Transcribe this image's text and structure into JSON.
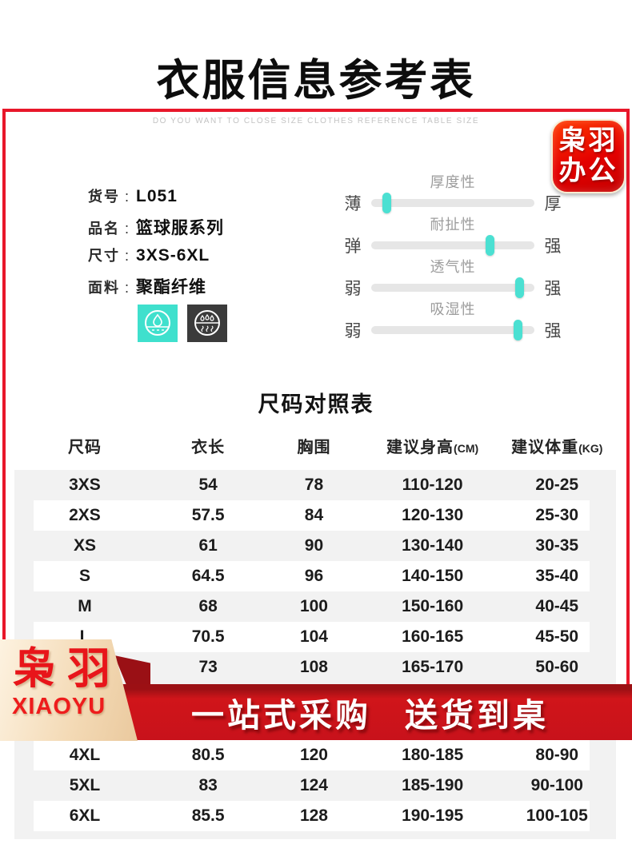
{
  "header": {
    "title": "衣服信息参考表",
    "subtitle": "DO YOU WANT TO CLOSE SIZE CLOTHES REFERENCE TABLE SIZE"
  },
  "brand_badge": {
    "line1": "枭羽",
    "line2": "办公"
  },
  "product_info": {
    "separator": ":",
    "items": [
      {
        "label": "货号",
        "value": "L051"
      },
      {
        "label": "品名",
        "value": "篮球服系列"
      },
      {
        "label": "尺寸",
        "value": "3XS-6XL"
      },
      {
        "label": "面料",
        "value": "聚酯纤维"
      }
    ]
  },
  "feature_icons": [
    {
      "name": "moisture-drop-icon",
      "bg": "#3fe0cd"
    },
    {
      "name": "sweat-wicking-icon",
      "bg": "#3b3b3b"
    }
  ],
  "sliders": [
    {
      "title": "厚度性",
      "left": "薄",
      "right": "厚",
      "percent": 10
    },
    {
      "title": "耐扯性",
      "left": "弹",
      "right": "强",
      "percent": 73
    },
    {
      "title": "透气性",
      "left": "弱",
      "right": "强",
      "percent": 91
    },
    {
      "title": "吸湿性",
      "left": "弱",
      "right": "强",
      "percent": 90
    }
  ],
  "size_table": {
    "title": "尺码对照表",
    "columns": [
      {
        "text": "尺码",
        "unit": ""
      },
      {
        "text": "衣长",
        "unit": ""
      },
      {
        "text": "胸围",
        "unit": ""
      },
      {
        "text": "建议身高",
        "unit": "(CM)"
      },
      {
        "text": "建议体重",
        "unit": "(KG)"
      }
    ],
    "rows": [
      {
        "size": "3XS",
        "length": "54",
        "chest": "78",
        "height": "110-120",
        "weight": "20-25",
        "striped": false
      },
      {
        "size": "2XS",
        "length": "57.5",
        "chest": "84",
        "height": "120-130",
        "weight": "25-30",
        "striped": true
      },
      {
        "size": "XS",
        "length": "61",
        "chest": "90",
        "height": "130-140",
        "weight": "30-35",
        "striped": false
      },
      {
        "size": "S",
        "length": "64.5",
        "chest": "96",
        "height": "140-150",
        "weight": "35-40",
        "striped": true
      },
      {
        "size": "M",
        "length": "68",
        "chest": "100",
        "height": "150-160",
        "weight": "40-45",
        "striped": false
      },
      {
        "size": "L",
        "length": "70.5",
        "chest": "104",
        "height": "160-165",
        "weight": "45-50",
        "striped": true
      },
      {
        "size": "",
        "length": "73",
        "chest": "108",
        "height": "165-170",
        "weight": "50-60",
        "striped": false
      },
      {
        "spacer": true
      },
      {
        "size": "4XL",
        "length": "80.5",
        "chest": "120",
        "height": "180-185",
        "weight": "80-90",
        "striped": true
      },
      {
        "size": "5XL",
        "length": "83",
        "chest": "124",
        "height": "185-190",
        "weight": "90-100",
        "striped": false
      },
      {
        "size": "6XL",
        "length": "85.5",
        "chest": "128",
        "height": "190-195",
        "weight": "100-105",
        "striped": true
      }
    ]
  },
  "banner": {
    "left": "一站式采购",
    "right": "送货到桌"
  },
  "corner_badge": {
    "cn": "枭羽",
    "en": "XIAOYU"
  },
  "colors": {
    "frame_red": "#e8172a",
    "banner_red": "#c8121b",
    "banner_dark_red": "#9c1014",
    "teal": "#3fe0cd",
    "icon_dark": "#3b3b3b",
    "badge_red": "#e40000",
    "corner_beige": "#f3d9b4",
    "brand_text_red": "#e8151a",
    "table_stripe_gray": "#f2f2f2"
  }
}
